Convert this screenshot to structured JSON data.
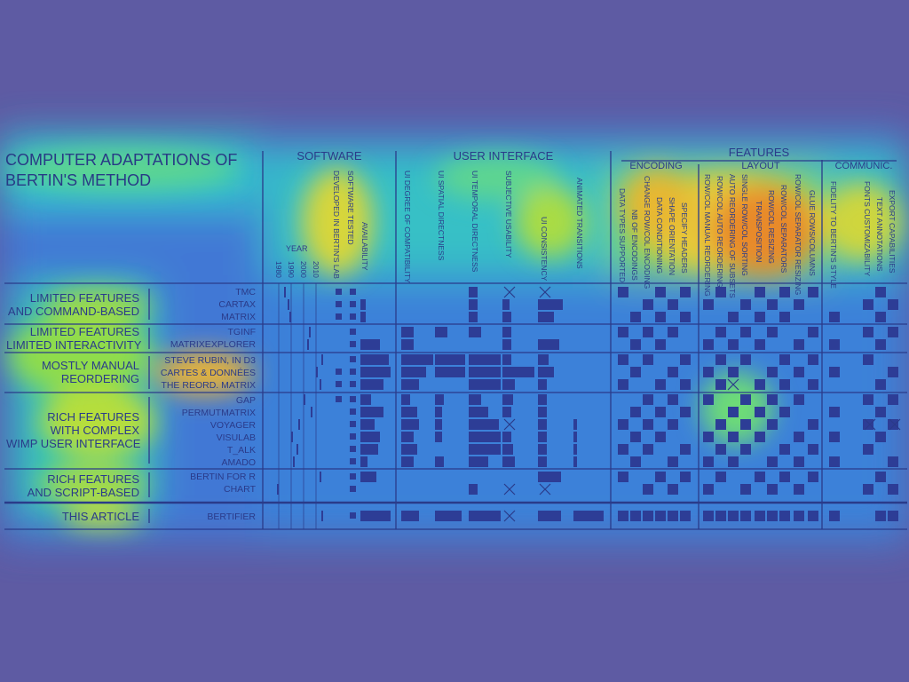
{
  "title": {
    "line1": "COMPUTER ADAPTATIONS OF",
    "line2": "BERTIN'S METHOD"
  },
  "sections": {
    "software": "SOFTWARE",
    "user_interface": "USER INTERFACE",
    "features": "FEATURES",
    "encoding": "ENCODING",
    "layout": "LAYOUT",
    "communic": "COMMUNIC."
  },
  "year": {
    "label": "YEAR",
    "ticks": [
      "1980",
      "1990",
      "2000",
      "2010"
    ]
  },
  "columns": {
    "software": [
      "DEVELOPED IN BERTIN'S LAB",
      "SOFTWARE TESTED",
      "AVAILABILITY"
    ],
    "ui": [
      "UI DEGREE OF COMPATIBILITY",
      "UI SPATIAL DIRECTNESS",
      "UI TEMPORAL DIRECTNESS",
      "SUBJECTIVE USABILITY",
      "UI CONSISTENCY",
      "ANIMATED TRANSITIONS"
    ],
    "encoding": [
      "DATA TYPES SUPPORTED",
      "NB OF ENCODINGS",
      "CHANGE ROW/COL ENCODING",
      "DATA CONDITIONING",
      "SHAPE ORIENTATION",
      "SPECIFY HEADERS"
    ],
    "layout": [
      "ROW/COL MANUAL REORDERING",
      "ROW/COL AUTO REORDERING",
      "AUTO REORDERING OF SUBSETS",
      "SINGLE ROW/COL SORTING",
      "TRANSPOSITION",
      "ROW/COL RESIZING",
      "ROW/COL SEPARATORS",
      "ROW/COL SEPARATOR RESIZING",
      "GLUE ROWS/COLUMNS"
    ],
    "communic": [
      "FIDELITY TO BERTIN'S STYLE",
      "FONTS CUSTOMIZABILITY",
      "TEXT ANNOTATIONS",
      "EXPORT CAPABILITIES"
    ]
  },
  "groups": [
    {
      "line1": "LIMITED FEATURES",
      "line2": "AND COMMAND-BASED",
      "tools": [
        "TMC",
        "CARTAX",
        "MATRIX"
      ]
    },
    {
      "line1": "LIMITED FEATURES",
      "line2": "LIMITED INTERACTIVITY",
      "tools": [
        "TGINF",
        "MATRIXEXPLORER"
      ]
    },
    {
      "line1": "MOSTLY MANUAL",
      "line2": "REORDERING",
      "tools": [
        "STEVE RUBIN, IN D3",
        "CARTES & DONNÉES",
        "THE REORD. MATRIX"
      ]
    },
    {
      "line1": "RICH FEATURES",
      "line2": "WITH COMPLEX",
      "line3": "WIMP USER INTERFACE",
      "tools": [
        "GAP",
        "PERMUTMATRIX",
        "VOYAGER",
        "VISULAB",
        "T_ALK",
        "AMADO"
      ]
    },
    {
      "line1": "RICH FEATURES",
      "line2": "AND SCRIPT-BASED",
      "tools": [
        "BERTIN FOR R",
        "CHART"
      ]
    },
    {
      "line1": "THIS ARTICLE",
      "tools": [
        "BERTIFIER"
      ]
    }
  ],
  "colors": {
    "background": "#5e5ba3",
    "ink": "#2a3b8a",
    "heat_low": "#3b6fe0",
    "heat_mid": "#2fd8c8",
    "heat_high": "#e8d23a",
    "heat_peak": "#e2401f"
  }
}
